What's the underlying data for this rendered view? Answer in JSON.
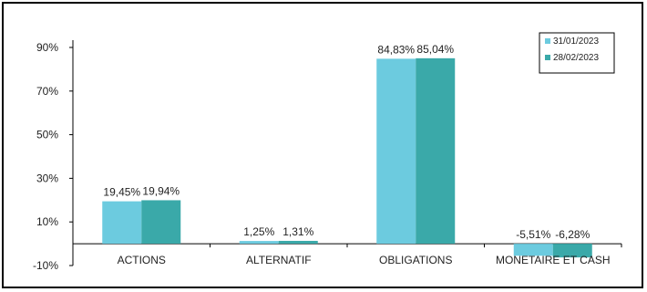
{
  "chart_data": {
    "type": "bar",
    "categories": [
      "ACTIONS",
      "ALTERNATIF",
      "OBLIGATIONS",
      "MONETAIRE ET CASH"
    ],
    "series": [
      {
        "name": "31/01/2023",
        "color": "#6ccbdf",
        "values": [
          19.45,
          1.25,
          84.83,
          -5.51
        ],
        "labels": [
          "19,45%",
          "1,25%",
          "84,83%",
          "-5,51%"
        ]
      },
      {
        "name": "28/02/2023",
        "color": "#3aa9a9",
        "values": [
          19.94,
          1.31,
          85.04,
          -6.28
        ],
        "labels": [
          "19,94%",
          "1,31%",
          "85,04%",
          "-6,28%"
        ]
      }
    ],
    "yticks": [
      90,
      70,
      50,
      30,
      10,
      -10
    ],
    "ytick_labels": [
      "90%",
      "70%",
      "50%",
      "30%",
      "10%",
      "-10%"
    ],
    "ylim": [
      -10,
      95
    ],
    "grid": false,
    "legend_position": "top-right"
  }
}
